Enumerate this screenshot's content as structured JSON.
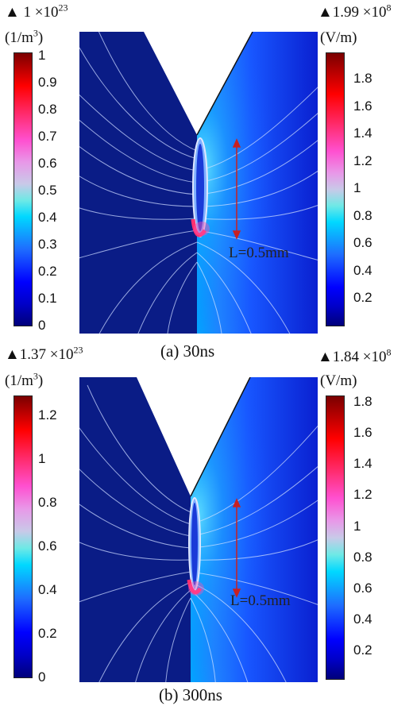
{
  "panel_a": {
    "left_max": "▲ 1 ×10",
    "left_max_exp": "23",
    "left_unit": "(1/m",
    "left_unit_exp": "3",
    "left_unit_tail": ")",
    "left_ticks": [
      "1",
      "0.9",
      "0.8",
      "0.7",
      "0.6",
      "0.5",
      "0.4",
      "0.3",
      "0.2",
      "0.1",
      "0"
    ],
    "right_max": "▲1.99 ×10",
    "right_max_exp": "8",
    "right_unit": "(V/m)",
    "right_ticks": [
      "1.8",
      "1.6",
      "1.4",
      "1.2",
      "1",
      "0.8",
      "0.6",
      "0.4",
      "0.2"
    ],
    "length_label": "L=0.5mm",
    "caption": "(a) 30ns"
  },
  "panel_b": {
    "left_max": "▲1.37 ×10",
    "left_max_exp": "23",
    "left_unit": "(1/m",
    "left_unit_exp": "3",
    "left_unit_tail": ")",
    "left_ticks": [
      "1.2",
      "1",
      "0.8",
      "0.6",
      "0.4",
      "0.2",
      "0"
    ],
    "right_max": "▲1.84 ×10",
    "right_max_exp": "8",
    "right_unit": "(V/m)",
    "right_ticks": [
      "1.8",
      "1.6",
      "1.4",
      "1.2",
      "1",
      "0.8",
      "0.6",
      "0.4",
      "0.2"
    ],
    "length_label": "L=0.5mm",
    "caption": "(b) 300ns"
  },
  "colors": {
    "dark_blue": "#0a1a7a",
    "arrow": "#c82020"
  }
}
